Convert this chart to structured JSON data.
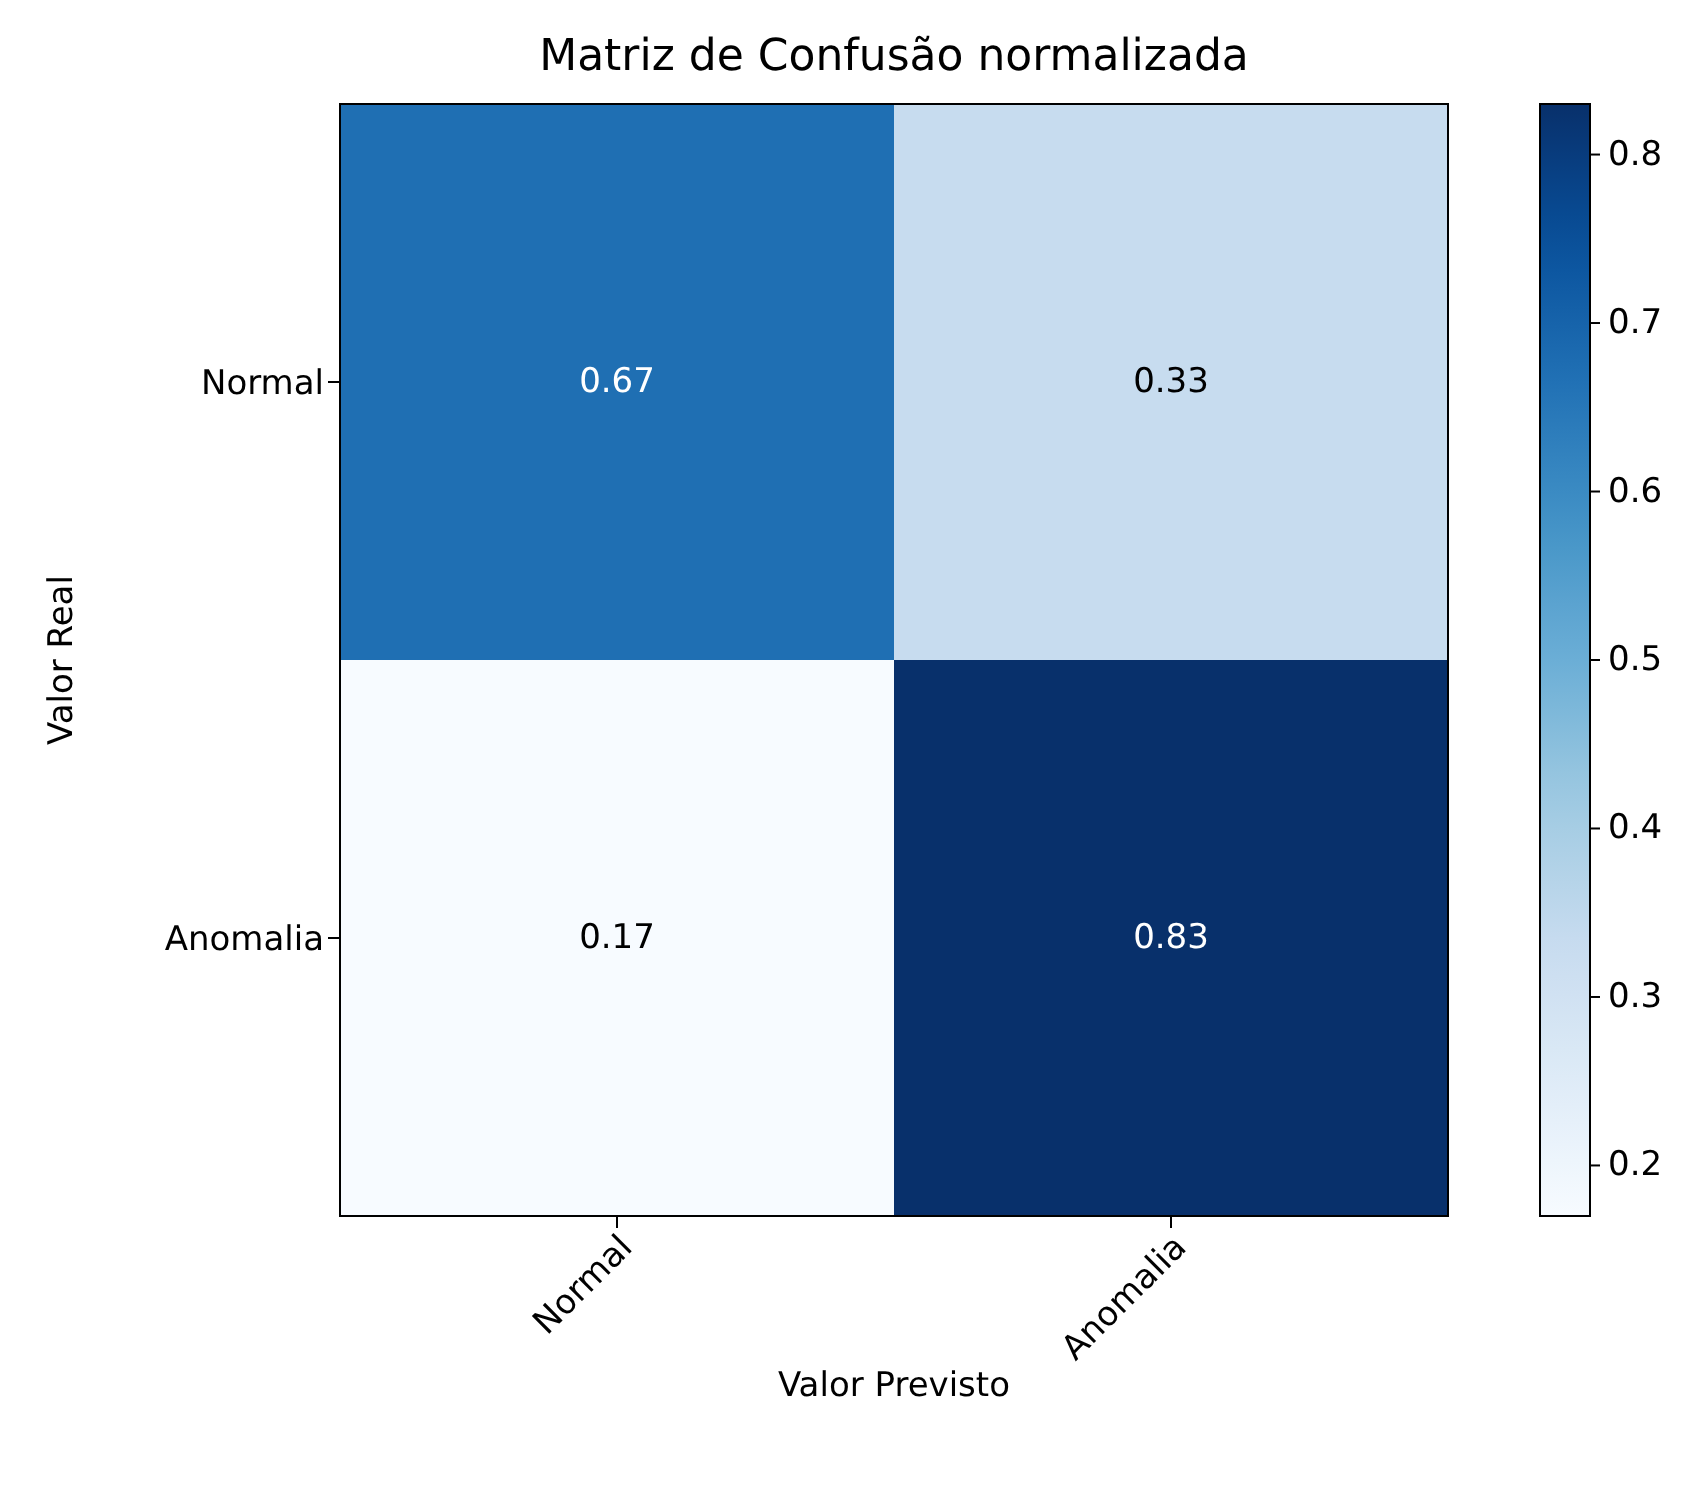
{
  "chart_data": {
    "type": "heatmap",
    "title": "Matriz de Confusão normalizada",
    "xlabel": "Valor Previsto",
    "ylabel": "Valor Real",
    "categories": [
      "Normal",
      "Anomalia"
    ],
    "y_categories": [
      "Normal",
      "Anomalia"
    ],
    "cells": [
      [
        0.67,
        0.33
      ],
      [
        0.17,
        0.83
      ]
    ],
    "data_labels": true,
    "clim": [
      0.17,
      0.83
    ],
    "cticks": [
      0.2,
      0.3,
      0.4,
      0.5,
      0.6,
      0.7,
      0.8
    ]
  }
}
